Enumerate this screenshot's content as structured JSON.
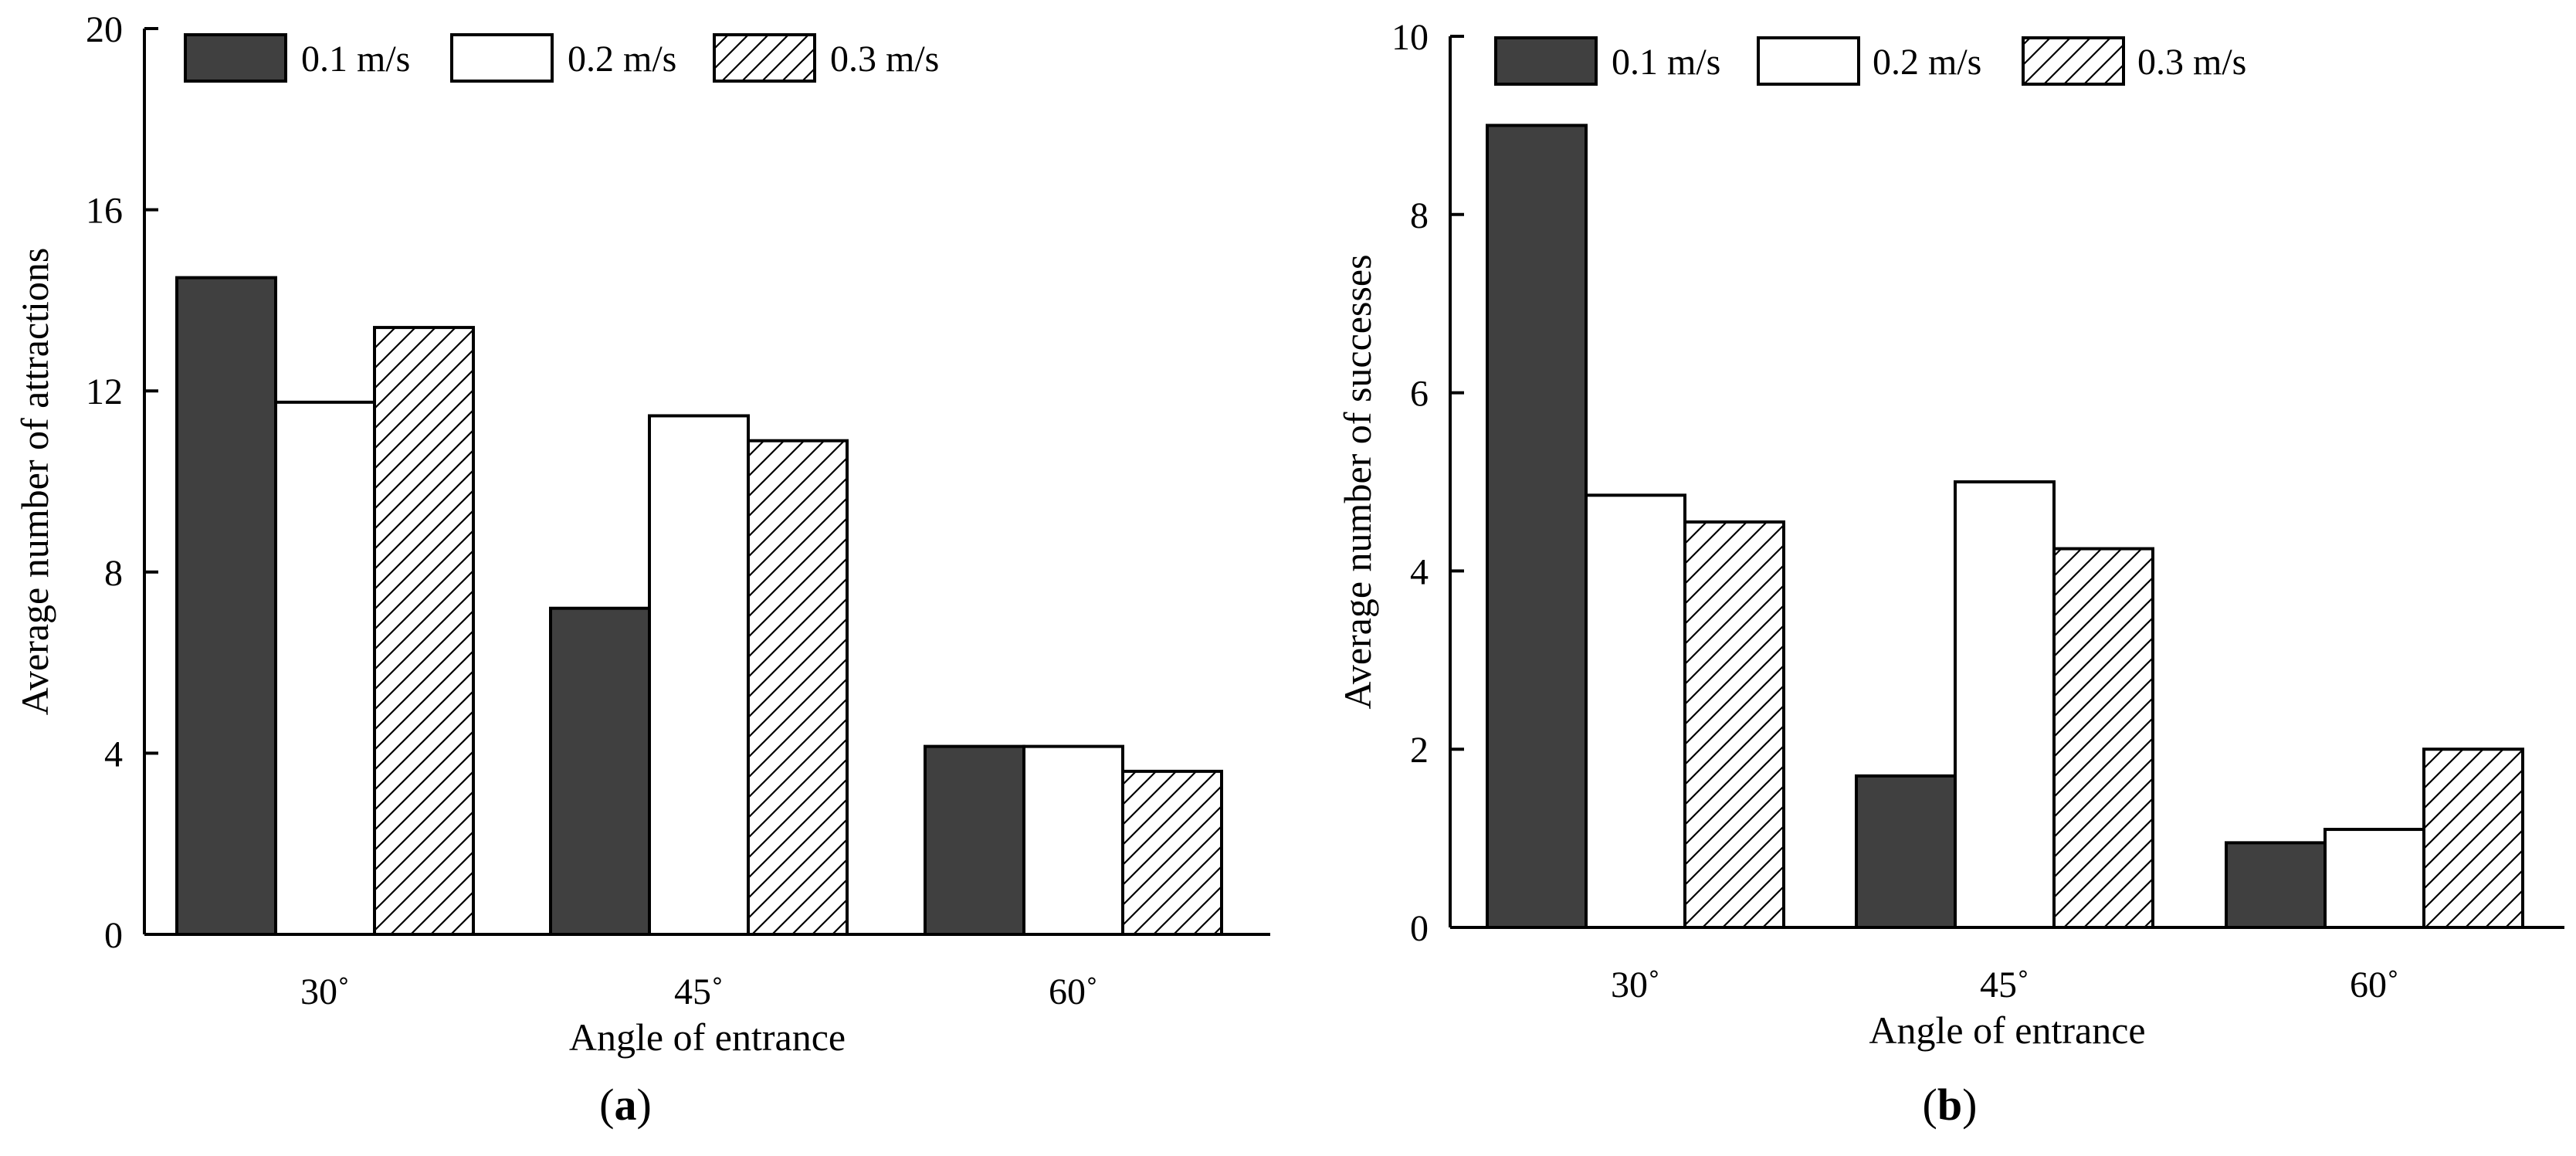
{
  "chart_data": [
    {
      "type": "bar",
      "panel_label": "a",
      "categories": [
        "30˚",
        "45˚",
        "60˚"
      ],
      "series": [
        {
          "name": "0.1 m/s",
          "values": [
            14.5,
            7.2,
            4.15
          ]
        },
        {
          "name": "0.2 m/s",
          "values": [
            11.75,
            11.45,
            4.15
          ]
        },
        {
          "name": "0.3 m/s",
          "values": [
            13.4,
            10.9,
            3.6
          ]
        }
      ],
      "xlabel": "Angle of entrance",
      "ylabel": "Average number of attractions",
      "ylim": [
        0,
        20
      ],
      "yticks": [
        0,
        4,
        8,
        12,
        16,
        20
      ],
      "legend": "top-left"
    },
    {
      "type": "bar",
      "panel_label": "b",
      "categories": [
        "30˚",
        "45˚",
        "60˚"
      ],
      "series": [
        {
          "name": "0.1 m/s",
          "values": [
            9.0,
            1.7,
            0.95
          ]
        },
        {
          "name": "0.2 m/s",
          "values": [
            4.85,
            5.0,
            1.1
          ]
        },
        {
          "name": "0.3 m/s",
          "values": [
            4.55,
            4.25,
            2.0
          ]
        }
      ],
      "xlabel": "Angle of entrance",
      "ylabel": "Average number of successes",
      "ylim": [
        0,
        10
      ],
      "yticks": [
        0,
        2,
        4,
        6,
        8,
        10
      ],
      "legend": "top-left"
    }
  ],
  "colors": {
    "series": [
      "#404040",
      "#ffffff",
      "#ffffff"
    ],
    "edge": "#000000",
    "hatch": "#000000"
  }
}
